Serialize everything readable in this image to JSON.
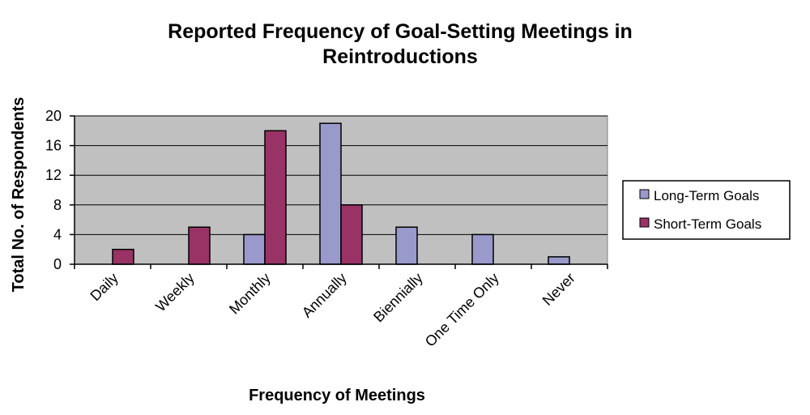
{
  "chart_data": {
    "type": "bar",
    "title": "Reported Frequency of Goal-Setting Meetings in Reintroductions",
    "title_lines": [
      "Reported Frequency of Goal-Setting Meetings in",
      "Reintroductions"
    ],
    "xlabel": "Frequency of Meetings",
    "ylabel": "Total No. of Respondents",
    "categories": [
      "Daily",
      "Weekly",
      "Monthly",
      "Annually",
      "Biennially",
      "One Time Only",
      "Never"
    ],
    "series": [
      {
        "name": "Long-Term Goals",
        "values": [
          0,
          0,
          4,
          19,
          5,
          4,
          1
        ],
        "color": "#9999cc"
      },
      {
        "name": "Short-Term Goals",
        "values": [
          2,
          5,
          18,
          8,
          0,
          0,
          0
        ],
        "color": "#993366"
      }
    ],
    "ylim": [
      0,
      20
    ],
    "yticks": [
      0,
      4,
      8,
      12,
      16,
      20
    ],
    "grid": true,
    "plot_background": "#c0c0c0",
    "legend_position": "right"
  }
}
